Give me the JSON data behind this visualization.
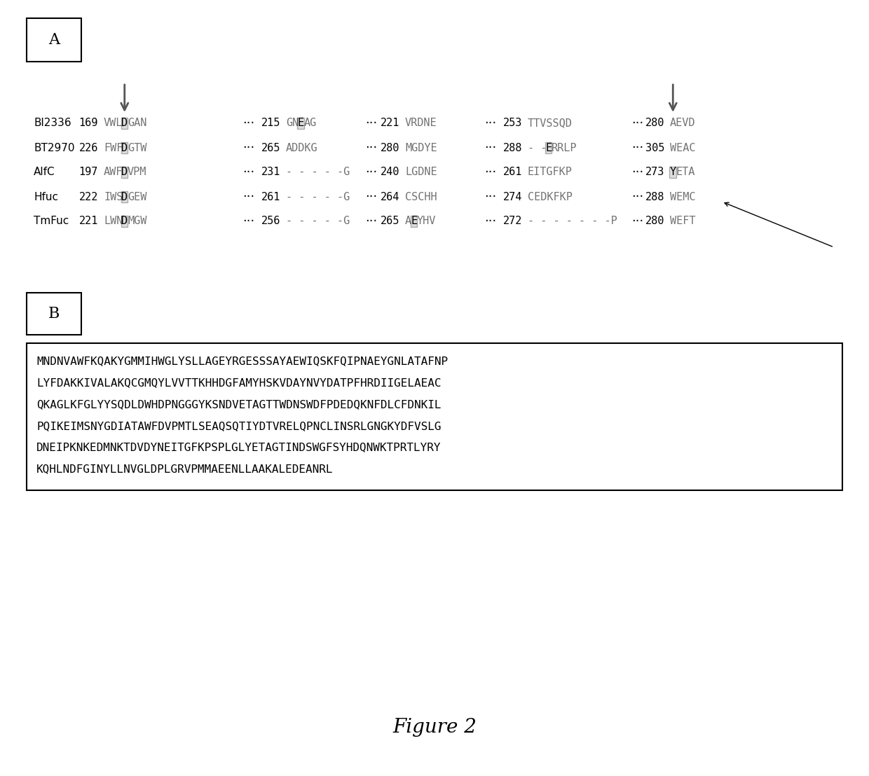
{
  "panel_a_label": "A",
  "panel_b_label": "B",
  "figure_caption": "Figure 2",
  "background_color": "#ffffff",
  "names": [
    "Bl2336",
    "BT2970",
    "AlfC",
    "Hfuc",
    "TmFuc"
  ],
  "num1_vals": [
    "169",
    "226",
    "197",
    "222",
    "221"
  ],
  "num2_vals": [
    "215",
    "265",
    "231",
    "261",
    "256"
  ],
  "num3_vals": [
    "221",
    "280",
    "240",
    "264",
    "265"
  ],
  "num4_vals": [
    "253",
    "288",
    "261",
    "274",
    "272"
  ],
  "num5_vals": [
    "280",
    "305",
    "273",
    "288",
    "280"
  ],
  "seg1_pre": [
    "VWL",
    "FWF",
    "AWF",
    "IWS",
    "LWN"
  ],
  "seg1_post": [
    "GAN",
    "GTW",
    "VPM",
    "GEW",
    "MGW"
  ],
  "seg2_data": [
    {
      "pre": "GN",
      "box": "E",
      "post": "AG"
    },
    {
      "pre": "ADDKG",
      "box": "",
      "post": ""
    },
    {
      "pre": "- - - - -G",
      "box": "",
      "post": ""
    },
    {
      "pre": "- - - - -G",
      "box": "",
      "post": ""
    },
    {
      "pre": "- - - - -G",
      "box": "",
      "post": ""
    }
  ],
  "seg3_data": [
    {
      "pre": "VRDNE",
      "box": "",
      "post": ""
    },
    {
      "pre": "MGDYE",
      "box": "",
      "post": ""
    },
    {
      "pre": "LGDNE",
      "box": "",
      "post": ""
    },
    {
      "pre": "CSCHH",
      "box": "",
      "post": ""
    },
    {
      "pre": "A",
      "box": "E",
      "post": "YHV"
    }
  ],
  "seg4_data": [
    {
      "pre": "TTVSSQD",
      "box": "",
      "post": ""
    },
    {
      "pre": "- -",
      "box": "E",
      "post": "RRLP"
    },
    {
      "pre": "EITGFKP",
      "box": "",
      "post": ""
    },
    {
      "pre": "CEDKFKP",
      "box": "",
      "post": ""
    },
    {
      "pre": "- - - - - - -P",
      "box": "",
      "post": ""
    }
  ],
  "seg5_data": [
    {
      "pre": "AEVD",
      "box": "",
      "post": ""
    },
    {
      "pre": "W",
      "box": "",
      "post": "EAC"
    },
    {
      "pre": "Y",
      "box": "",
      "post": "ETA"
    },
    {
      "pre": "W",
      "box": "",
      "post": "EMC"
    },
    {
      "pre": "WEFT",
      "box": "",
      "post": ""
    }
  ],
  "seq_b_lines": [
    "MNDNVAWFKQAKYGMMIHWGLYSLLAGEYRGESSSAYAEWIQSKFQIPNAEYGNLATAFNP",
    "LYFDAKKIVALAKQCGMQYLVVTTKHHDGFAMYHSKVDAYNVYDATPFHRDIIGELAEAC",
    "QKAGLKFGLYYSQDLDWHDPNGGGYKSNDVETAGTTWDNSWDFPDEDQKNFDLCFDNKIL",
    "PQIKEIMSNYGDIATAWFDVPMTLSEAQSQTIYDTVRELQPNCLINSRLGNGKYDFVSLG",
    "DNEIPKNKEDMNKTDVDYNEITGFKPSPLGLYETAGTINDSWGFSYHDQNWKTPRTLYRY",
    "KQHLNDFGINYLLNVGLDPLGRVPMMAEENLLAAKALEDEANRL"
  ]
}
